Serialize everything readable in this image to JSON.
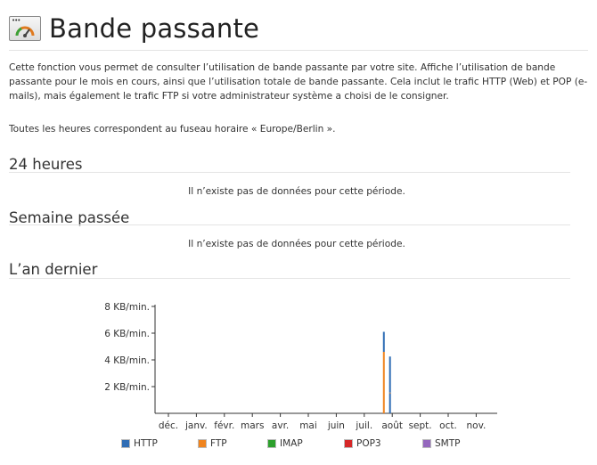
{
  "page": {
    "title": "Bande passante",
    "description": "Cette fonction vous permet de consulter l’utilisation de bande passante par votre site. Affiche l’utilisation de bande passante pour le mois en cours, ainsi que l’utilisation totale de bande passante. Cela inclut le trafic HTTP (Web) et POP (e-mails), mais également le trafic FTP si votre administrateur système a choisi de le consigner.",
    "timezone_note": "Toutes les heures correspondent au fuseau horaire « Europe/Berlin »."
  },
  "sections": {
    "day": {
      "title": "24 heures",
      "empty_message": "Il n’existe pas de données pour cette période."
    },
    "week": {
      "title": "Semaine passée",
      "empty_message": "Il n’existe pas de données pour cette période."
    },
    "year": {
      "title": "L’an dernier"
    }
  },
  "legend": [
    {
      "label": "HTTP",
      "color": "#2f6db5"
    },
    {
      "label": "FTP",
      "color": "#f0841e"
    },
    {
      "label": "IMAP",
      "color": "#2ca02c"
    },
    {
      "label": "POP3",
      "color": "#d62728"
    },
    {
      "label": "SMTP",
      "color": "#9467bd"
    }
  ],
  "chart_data": {
    "type": "bar",
    "title": "",
    "xlabel": "",
    "ylabel": "",
    "categories": [
      "déc.",
      "janv.",
      "févr.",
      "mars",
      "avr.",
      "mai",
      "juin",
      "juil.",
      "août",
      "sept.",
      "oct.",
      "nov."
    ],
    "y_ticks": [
      "2 KB/min.",
      "4 KB/min.",
      "6 KB/min.",
      "8 KB/min."
    ],
    "y_tick_values": [
      2,
      4,
      6,
      8
    ],
    "ylim": [
      0,
      8
    ],
    "stacked": true,
    "legend_position": "bottom",
    "grid": false,
    "bars": [
      {
        "x": 7.7,
        "segments": [
          {
            "series": "FTP",
            "value": 4.6
          },
          {
            "series": "HTTP",
            "value": 1.5
          }
        ]
      },
      {
        "x": 7.92,
        "segments": [
          {
            "series": "HTTP",
            "value": 1.5
          },
          {
            "series": "FTP",
            "value": 0.05
          },
          {
            "series": "HTTP",
            "value": 2.7
          }
        ]
      }
    ]
  }
}
